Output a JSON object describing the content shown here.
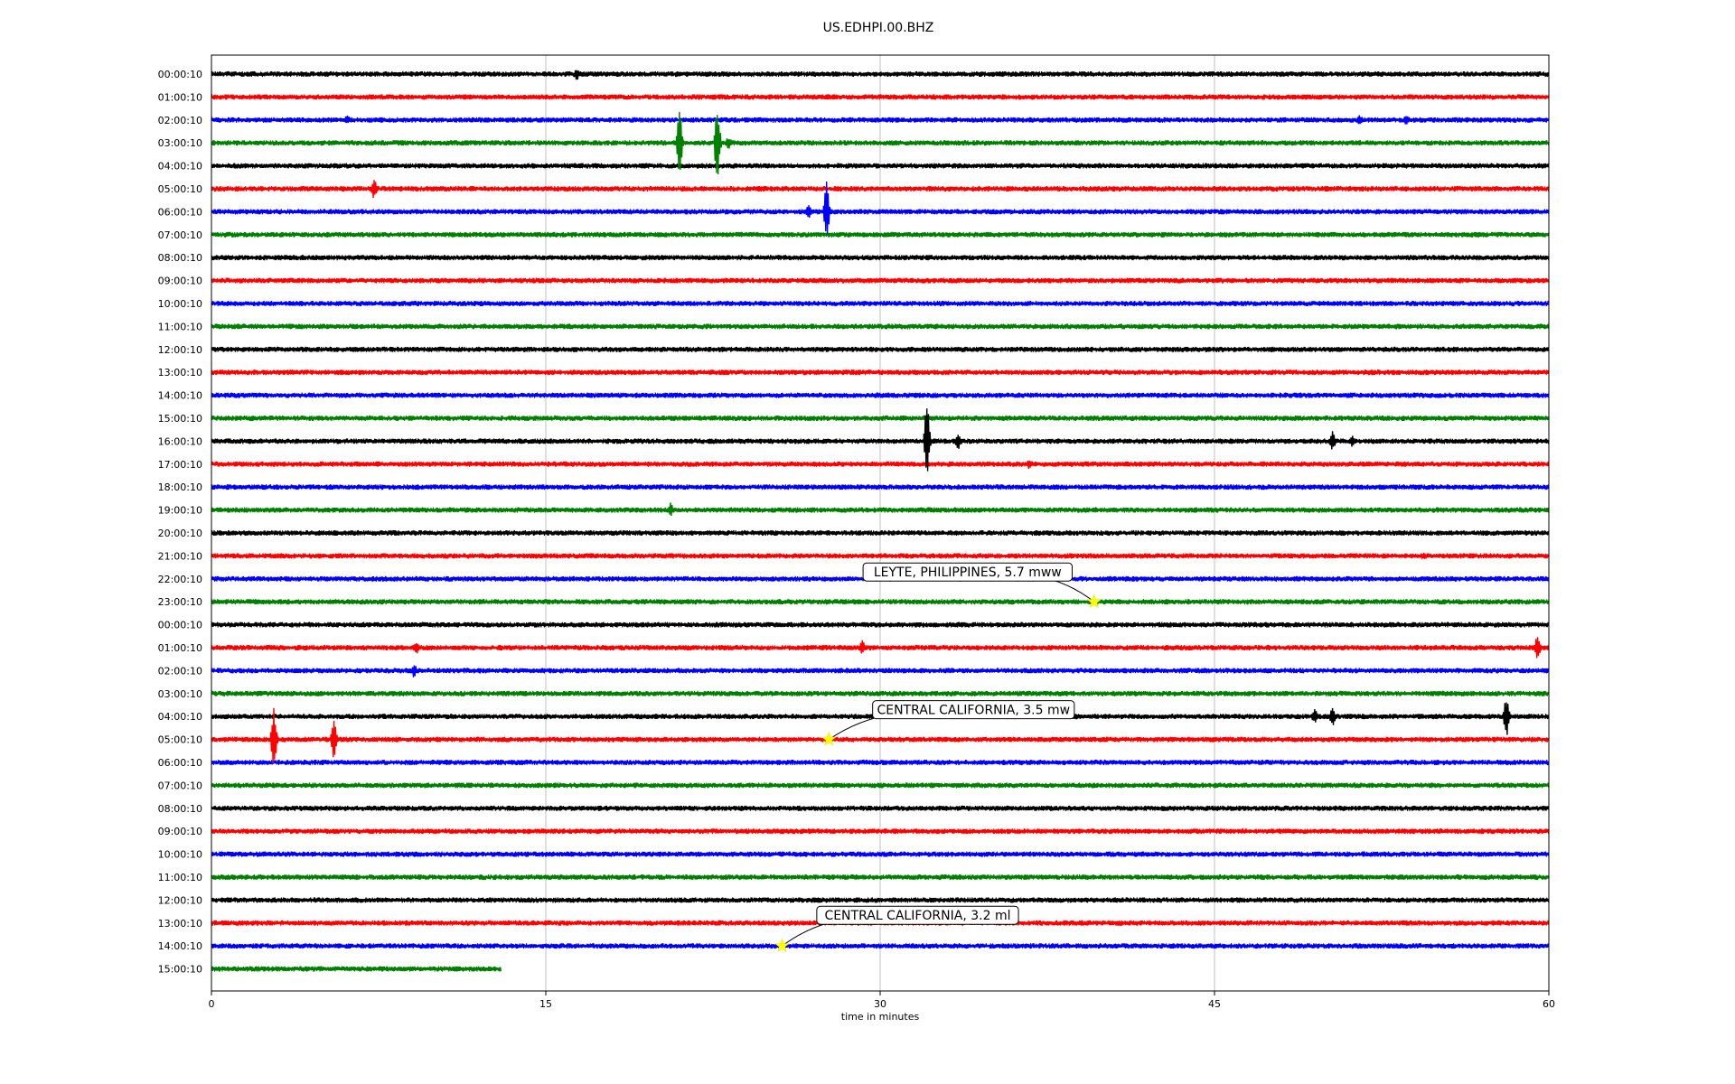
{
  "title": "US.EDHPI.00.BHZ",
  "chart_data": {
    "type": "line",
    "title": "US.EDHPI.00.BHZ",
    "xlabel": "time in minutes",
    "ylabel": "",
    "xlim": [
      0,
      60
    ],
    "xticks": [
      0,
      15,
      30,
      45,
      60
    ],
    "grid": "vertical",
    "trace_colors": [
      "#000000",
      "#ff0000",
      "#0000ff",
      "#008000"
    ],
    "row_labels": [
      "00:00:10",
      "01:00:10",
      "02:00:10",
      "03:00:10",
      "04:00:10",
      "05:00:10",
      "06:00:10",
      "07:00:10",
      "08:00:10",
      "09:00:10",
      "10:00:10",
      "11:00:10",
      "12:00:10",
      "13:00:10",
      "14:00:10",
      "15:00:10",
      "16:00:10",
      "17:00:10",
      "18:00:10",
      "19:00:10",
      "20:00:10",
      "21:00:10",
      "22:00:10",
      "23:00:10",
      "00:00:10",
      "01:00:10",
      "02:00:10",
      "03:00:10",
      "04:00:10",
      "05:00:10",
      "06:00:10",
      "07:00:10",
      "08:00:10",
      "09:00:10",
      "10:00:10",
      "11:00:10",
      "12:00:10",
      "13:00:10",
      "14:00:10",
      "15:00:10"
    ],
    "last_row_end_minute": 13,
    "spikes": [
      {
        "row": 0,
        "minute": 16.5,
        "amp": 0.5
      },
      {
        "row": 2,
        "minute": 6.2,
        "amp": 0.4
      },
      {
        "row": 2,
        "minute": 51.6,
        "amp": 0.5
      },
      {
        "row": 2,
        "minute": 53.7,
        "amp": 0.5
      },
      {
        "row": 3,
        "minute": 21.1,
        "amp": 2.8
      },
      {
        "row": 3,
        "minute": 22.8,
        "amp": 3.0
      },
      {
        "row": 3,
        "minute": 23.3,
        "amp": 0.5
      },
      {
        "row": 5,
        "minute": 7.4,
        "amp": 0.8
      },
      {
        "row": 6,
        "minute": 26.9,
        "amp": 0.7
      },
      {
        "row": 6,
        "minute": 27.7,
        "amp": 2.4
      },
      {
        "row": 16,
        "minute": 32.2,
        "amp": 3.0
      },
      {
        "row": 16,
        "minute": 33.6,
        "amp": 0.7
      },
      {
        "row": 16,
        "minute": 50.4,
        "amp": 0.8
      },
      {
        "row": 16,
        "minute": 51.3,
        "amp": 0.5
      },
      {
        "row": 17,
        "minute": 36.8,
        "amp": 0.4
      },
      {
        "row": 19,
        "minute": 20.7,
        "amp": 0.6
      },
      {
        "row": 21,
        "minute": 54.5,
        "amp": 0.3
      },
      {
        "row": 25,
        "minute": 9.3,
        "amp": 0.5
      },
      {
        "row": 25,
        "minute": 29.3,
        "amp": 0.6
      },
      {
        "row": 25,
        "minute": 59.6,
        "amp": 1.0
      },
      {
        "row": 26,
        "minute": 9.2,
        "amp": 0.6
      },
      {
        "row": 28,
        "minute": 49.6,
        "amp": 0.6
      },
      {
        "row": 28,
        "minute": 50.4,
        "amp": 0.8
      },
      {
        "row": 28,
        "minute": 58.2,
        "amp": 1.6
      },
      {
        "row": 29,
        "minute": 2.9,
        "amp": 2.6
      },
      {
        "row": 29,
        "minute": 5.6,
        "amp": 1.8
      }
    ],
    "events": [
      {
        "label": "LEYTE, PHILIPPINES, 5.7 mww",
        "row": 23,
        "minute": 39.6
      },
      {
        "label": "CENTRAL CALIFORNIA, 3.5 mw",
        "row": 29,
        "minute": 27.7
      },
      {
        "label": "CENTRAL CALIFORNIA, 3.2 ml",
        "row": 38,
        "minute": 25.6
      }
    ]
  }
}
